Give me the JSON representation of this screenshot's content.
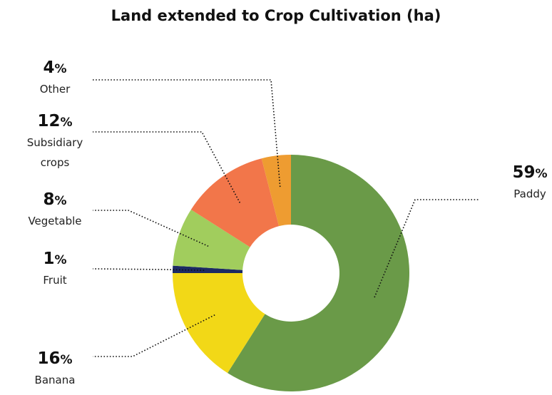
{
  "chart_data": {
    "type": "pie",
    "title": "Land extended to Crop Cultivation (ha)",
    "donut": true,
    "unit": "%",
    "slices": [
      {
        "label": "Paddy",
        "value": 59,
        "color": "#6a9a48"
      },
      {
        "label": "Banana",
        "value": 16,
        "color": "#f2d817"
      },
      {
        "label": "Fruit",
        "value": 1,
        "color": "#1c2a63"
      },
      {
        "label": "Vegetable",
        "value": 8,
        "color": "#a1cd5d"
      },
      {
        "label": "Subsidiary crops",
        "value": 12,
        "color": "#f2764a"
      },
      {
        "label": "Other",
        "value": 4,
        "color": "#ee9c31"
      }
    ],
    "legend": "callouts"
  }
}
